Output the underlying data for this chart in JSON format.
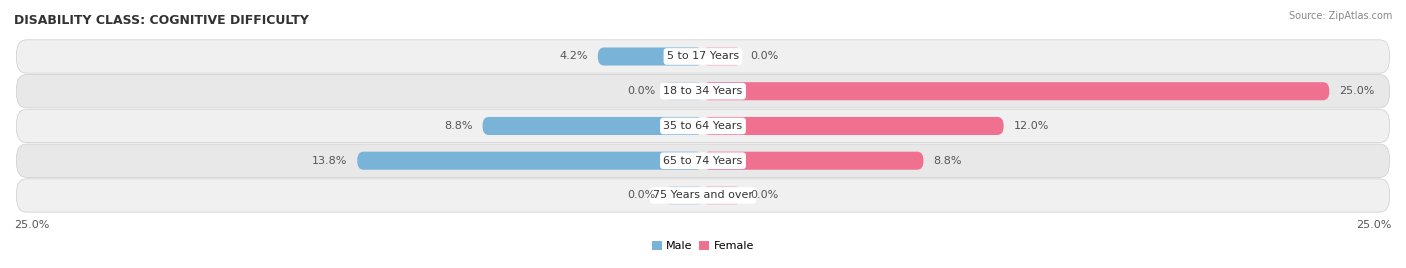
{
  "title": "DISABILITY CLASS: COGNITIVE DIFFICULTY",
  "source": "Source: ZipAtlas.com",
  "categories": [
    "5 to 17 Years",
    "18 to 34 Years",
    "35 to 64 Years",
    "65 to 74 Years",
    "75 Years and over"
  ],
  "male_values": [
    4.2,
    0.0,
    8.8,
    13.8,
    0.0
  ],
  "female_values": [
    0.0,
    25.0,
    12.0,
    8.8,
    0.0
  ],
  "max_value": 25.0,
  "male_color": "#7ab3d8",
  "female_color": "#f07090",
  "male_light_color": "#b8d4ec",
  "female_light_color": "#f5b0c0",
  "title_fontsize": 9,
  "label_fontsize": 8,
  "tick_fontsize": 8,
  "bar_height": 0.52,
  "row_colors": [
    "#f0f0f0",
    "#e8e8e8"
  ],
  "background_color": "#ffffff",
  "zero_bar_width": 1.5
}
